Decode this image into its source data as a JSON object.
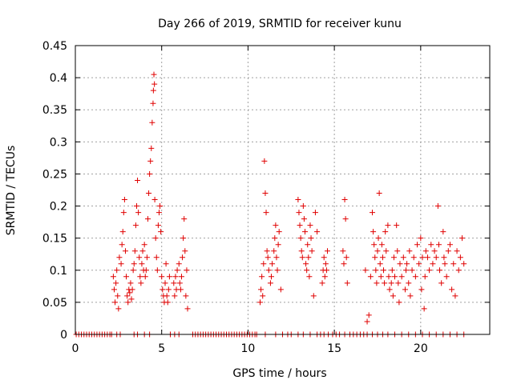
{
  "chart_data": {
    "type": "scatter",
    "title": "Day 266 of 2019, SRMTID for receiver kunu",
    "xlabel": "GPS time / hours",
    "ylabel": "SRMTID / TECUs",
    "xlim": [
      0,
      24
    ],
    "ylim": [
      0,
      0.45
    ],
    "grid": true,
    "marker": "+",
    "color": "#e00000",
    "xticks": [
      {
        "value": 0,
        "label": "0"
      },
      {
        "value": 5,
        "label": "5"
      },
      {
        "value": 10,
        "label": "10"
      },
      {
        "value": 15,
        "label": "15"
      },
      {
        "value": 20,
        "label": "20"
      }
    ],
    "yticks": [
      {
        "value": 0,
        "label": "0"
      },
      {
        "value": 0.05,
        "label": "0.05"
      },
      {
        "value": 0.1,
        "label": "0.1"
      },
      {
        "value": 0.15,
        "label": "0.15"
      },
      {
        "value": 0.2,
        "label": "0.2"
      },
      {
        "value": 0.25,
        "label": "0.25"
      },
      {
        "value": 0.3,
        "label": "0.3"
      },
      {
        "value": 0.35,
        "label": "0.35"
      },
      {
        "value": 0.4,
        "label": "0.4"
      },
      {
        "value": 0.45,
        "label": "0.45"
      }
    ],
    "series": [
      {
        "name": "SRMTID",
        "points": [
          [
            0.05,
            0
          ],
          [
            0.2,
            0
          ],
          [
            0.35,
            0
          ],
          [
            0.5,
            0
          ],
          [
            0.65,
            0
          ],
          [
            0.8,
            0
          ],
          [
            0.95,
            0
          ],
          [
            1.1,
            0
          ],
          [
            1.25,
            0
          ],
          [
            1.4,
            0
          ],
          [
            1.55,
            0
          ],
          [
            1.7,
            0
          ],
          [
            1.85,
            0
          ],
          [
            2.0,
            0
          ],
          [
            2.1,
            0
          ],
          [
            2.2,
            0.09
          ],
          [
            2.25,
            0.07
          ],
          [
            2.3,
            0.05
          ],
          [
            2.35,
            0.08
          ],
          [
            2.4,
            0.1
          ],
          [
            2.45,
            0.06
          ],
          [
            2.5,
            0.04
          ],
          [
            2.55,
            0.12
          ],
          [
            2.65,
            0.11
          ],
          [
            2.7,
            0.14
          ],
          [
            2.75,
            0.16
          ],
          [
            2.8,
            0.19
          ],
          [
            2.85,
            0.21
          ],
          [
            2.9,
            0.13
          ],
          [
            2.95,
            0.09
          ],
          [
            3.0,
            0.06
          ],
          [
            3.05,
            0.05
          ],
          [
            3.1,
            0.07
          ],
          [
            3.15,
            0.065
          ],
          [
            3.2,
            0.08
          ],
          [
            3.25,
            0.055
          ],
          [
            3.3,
            0.07
          ],
          [
            3.35,
            0.1
          ],
          [
            3.4,
            0.11
          ],
          [
            3.45,
            0.13
          ],
          [
            3.5,
            0.17
          ],
          [
            3.55,
            0.2
          ],
          [
            3.6,
            0.24
          ],
          [
            3.65,
            0.19
          ],
          [
            3.7,
            0.12
          ],
          [
            3.75,
            0.09
          ],
          [
            3.8,
            0.08
          ],
          [
            3.85,
            0.11
          ],
          [
            3.9,
            0.13
          ],
          [
            3.95,
            0.1
          ],
          [
            4.0,
            0.14
          ],
          [
            4.05,
            0.09
          ],
          [
            4.1,
            0.1
          ],
          [
            4.15,
            0.12
          ],
          [
            4.2,
            0.18
          ],
          [
            4.25,
            0.22
          ],
          [
            4.3,
            0.25
          ],
          [
            4.35,
            0.27
          ],
          [
            4.4,
            0.29
          ],
          [
            4.45,
            0.33
          ],
          [
            4.5,
            0.36
          ],
          [
            4.52,
            0.38
          ],
          [
            4.55,
            0.405
          ],
          [
            4.58,
            0.39
          ],
          [
            4.6,
            0.21
          ],
          [
            4.65,
            0.15
          ],
          [
            4.7,
            0.12
          ],
          [
            4.75,
            0.1
          ],
          [
            4.8,
            0.17
          ],
          [
            4.85,
            0.19
          ],
          [
            4.9,
            0.2
          ],
          [
            4.95,
            0.16
          ],
          [
            5.0,
            0.09
          ],
          [
            5.05,
            0.07
          ],
          [
            5.1,
            0.06
          ],
          [
            5.15,
            0.05
          ],
          [
            5.2,
            0.08
          ],
          [
            5.25,
            0.11
          ],
          [
            5.3,
            0.06
          ],
          [
            5.35,
            0.05
          ],
          [
            5.4,
            0.07
          ],
          [
            5.45,
            0.09
          ],
          [
            5.7,
            0.08
          ],
          [
            5.75,
            0.06
          ],
          [
            5.8,
            0.09
          ],
          [
            5.85,
            0.07
          ],
          [
            5.9,
            0.1
          ],
          [
            6.0,
            0.11
          ],
          [
            6.05,
            0.08
          ],
          [
            6.1,
            0.07
          ],
          [
            6.15,
            0.09
          ],
          [
            6.2,
            0.12
          ],
          [
            6.25,
            0.15
          ],
          [
            6.3,
            0.18
          ],
          [
            6.35,
            0.13
          ],
          [
            6.4,
            0.06
          ],
          [
            6.45,
            0.1
          ],
          [
            6.5,
            0.04
          ],
          [
            2.4,
            0
          ],
          [
            2.6,
            0
          ],
          [
            3.4,
            0
          ],
          [
            3.6,
            0
          ],
          [
            4.0,
            0
          ],
          [
            4.3,
            0
          ],
          [
            5.5,
            0
          ],
          [
            5.75,
            0
          ],
          [
            6.0,
            0
          ],
          [
            6.8,
            0
          ],
          [
            6.95,
            0
          ],
          [
            7.1,
            0
          ],
          [
            7.25,
            0
          ],
          [
            7.4,
            0
          ],
          [
            7.55,
            0
          ],
          [
            7.7,
            0
          ],
          [
            7.85,
            0
          ],
          [
            8.0,
            0
          ],
          [
            8.15,
            0
          ],
          [
            8.3,
            0
          ],
          [
            8.45,
            0
          ],
          [
            8.6,
            0
          ],
          [
            8.75,
            0
          ],
          [
            8.9,
            0
          ],
          [
            9.05,
            0
          ],
          [
            9.2,
            0
          ],
          [
            9.35,
            0
          ],
          [
            9.5,
            0
          ],
          [
            9.65,
            0
          ],
          [
            9.8,
            0
          ],
          [
            9.95,
            0
          ],
          [
            10.1,
            0
          ],
          [
            10.25,
            0
          ],
          [
            10.4,
            0
          ],
          [
            10.5,
            0
          ],
          [
            10.7,
            0.05
          ],
          [
            10.75,
            0.07
          ],
          [
            10.8,
            0.09
          ],
          [
            10.85,
            0.06
          ],
          [
            10.9,
            0.11
          ],
          [
            10.95,
            0.27
          ],
          [
            11.0,
            0.22
          ],
          [
            11.05,
            0.19
          ],
          [
            11.1,
            0.13
          ],
          [
            11.15,
            0.12
          ],
          [
            11.2,
            0.1
          ],
          [
            11.3,
            0.08
          ],
          [
            11.35,
            0.09
          ],
          [
            11.4,
            0.11
          ],
          [
            11.5,
            0.13
          ],
          [
            11.55,
            0.15
          ],
          [
            11.6,
            0.17
          ],
          [
            11.65,
            0.12
          ],
          [
            11.7,
            0.1
          ],
          [
            11.75,
            0.14
          ],
          [
            11.8,
            0.16
          ],
          [
            11.9,
            0.07
          ],
          [
            11.0,
            0
          ],
          [
            11.6,
            0
          ],
          [
            12.0,
            0
          ],
          [
            12.3,
            0
          ],
          [
            12.5,
            0
          ],
          [
            12.9,
            0.21
          ],
          [
            12.95,
            0.19
          ],
          [
            13.0,
            0.17
          ],
          [
            13.05,
            0.15
          ],
          [
            13.1,
            0.13
          ],
          [
            13.15,
            0.12
          ],
          [
            13.2,
            0.2
          ],
          [
            13.25,
            0.18
          ],
          [
            13.3,
            0.16
          ],
          [
            13.35,
            0.11
          ],
          [
            13.4,
            0.1
          ],
          [
            13.45,
            0.14
          ],
          [
            13.5,
            0.12
          ],
          [
            13.55,
            0.09
          ],
          [
            13.6,
            0.17
          ],
          [
            13.65,
            0.15
          ],
          [
            13.7,
            0.13
          ],
          [
            13.8,
            0.06
          ],
          [
            13.9,
            0.19
          ],
          [
            14.0,
            0.16
          ],
          [
            14.3,
            0.08
          ],
          [
            14.35,
            0.1
          ],
          [
            14.4,
            0.12
          ],
          [
            14.45,
            0.09
          ],
          [
            14.5,
            0.11
          ],
          [
            14.55,
            0.1
          ],
          [
            14.6,
            0.13
          ],
          [
            12.9,
            0
          ],
          [
            13.2,
            0
          ],
          [
            13.6,
            0
          ],
          [
            14.0,
            0
          ],
          [
            14.2,
            0
          ],
          [
            14.4,
            0
          ],
          [
            14.65,
            0
          ],
          [
            14.9,
            0
          ],
          [
            15.1,
            0
          ],
          [
            15.3,
            0
          ],
          [
            15.5,
            0.13
          ],
          [
            15.55,
            0.11
          ],
          [
            15.6,
            0.21
          ],
          [
            15.65,
            0.18
          ],
          [
            15.7,
            0.12
          ],
          [
            15.75,
            0.08
          ],
          [
            15.6,
            0
          ],
          [
            15.9,
            0
          ],
          [
            16.1,
            0
          ],
          [
            16.3,
            0
          ],
          [
            16.5,
            0
          ],
          [
            16.7,
            0
          ],
          [
            16.8,
            0.1
          ],
          [
            16.9,
            0.02
          ],
          [
            17.0,
            0.03
          ],
          [
            17.1,
            0.09
          ],
          [
            17.2,
            0.19
          ],
          [
            17.25,
            0.16
          ],
          [
            17.3,
            0.14
          ],
          [
            17.35,
            0.12
          ],
          [
            17.4,
            0.1
          ],
          [
            17.45,
            0.08
          ],
          [
            17.5,
            0.13
          ],
          [
            17.55,
            0.15
          ],
          [
            17.6,
            0.22
          ],
          [
            17.65,
            0.11
          ],
          [
            17.7,
            0.09
          ],
          [
            17.75,
            0.14
          ],
          [
            17.8,
            0.12
          ],
          [
            17.85,
            0.1
          ],
          [
            17.9,
            0.08
          ],
          [
            17.95,
            0.16
          ],
          [
            18.0,
            0.13
          ],
          [
            18.1,
            0.17
          ],
          [
            18.15,
            0.09
          ],
          [
            18.2,
            0.07
          ],
          [
            18.3,
            0.08
          ],
          [
            18.35,
            0.1
          ],
          [
            18.4,
            0.06
          ],
          [
            18.45,
            0.12
          ],
          [
            18.5,
            0.09
          ],
          [
            18.6,
            0.17
          ],
          [
            18.65,
            0.13
          ],
          [
            18.7,
            0.08
          ],
          [
            18.75,
            0.05
          ],
          [
            18.8,
            0.11
          ],
          [
            18.9,
            0.09
          ],
          [
            19.0,
            0.12
          ],
          [
            19.1,
            0.07
          ],
          [
            19.15,
            0.1
          ],
          [
            19.2,
            0.11
          ],
          [
            19.3,
            0.08
          ],
          [
            19.35,
            0.13
          ],
          [
            19.4,
            0.06
          ],
          [
            19.5,
            0.1
          ],
          [
            19.6,
            0.12
          ],
          [
            19.7,
            0.09
          ],
          [
            19.8,
            0.14
          ],
          [
            19.9,
            0.11
          ],
          [
            20.0,
            0.15
          ],
          [
            20.05,
            0.07
          ],
          [
            20.1,
            0.12
          ],
          [
            20.2,
            0.04
          ],
          [
            20.25,
            0.09
          ],
          [
            20.3,
            0.13
          ],
          [
            20.4,
            0.12
          ],
          [
            20.5,
            0.1
          ],
          [
            20.6,
            0.14
          ],
          [
            20.7,
            0.11
          ],
          [
            20.8,
            0.13
          ],
          [
            20.9,
            0.12
          ],
          [
            21.0,
            0.2
          ],
          [
            21.05,
            0.14
          ],
          [
            21.1,
            0.1
          ],
          [
            21.2,
            0.08
          ],
          [
            21.3,
            0.16
          ],
          [
            21.35,
            0.12
          ],
          [
            21.4,
            0.11
          ],
          [
            21.5,
            0.09
          ],
          [
            21.6,
            0.13
          ],
          [
            21.7,
            0.14
          ],
          [
            21.8,
            0.07
          ],
          [
            21.9,
            0.11
          ],
          [
            22.0,
            0.06
          ],
          [
            22.1,
            0.13
          ],
          [
            22.2,
            0.1
          ],
          [
            22.3,
            0.12
          ],
          [
            22.4,
            0.15
          ],
          [
            22.5,
            0.11
          ],
          [
            16.9,
            0
          ],
          [
            17.2,
            0
          ],
          [
            17.5,
            0
          ],
          [
            17.8,
            0
          ],
          [
            18.1,
            0
          ],
          [
            18.5,
            0
          ],
          [
            18.9,
            0
          ],
          [
            19.3,
            0
          ],
          [
            19.7,
            0
          ],
          [
            20.1,
            0
          ],
          [
            20.5,
            0
          ],
          [
            20.9,
            0
          ],
          [
            21.3,
            0
          ],
          [
            21.7,
            0
          ],
          [
            22.1,
            0
          ],
          [
            22.5,
            0
          ]
        ]
      }
    ]
  }
}
